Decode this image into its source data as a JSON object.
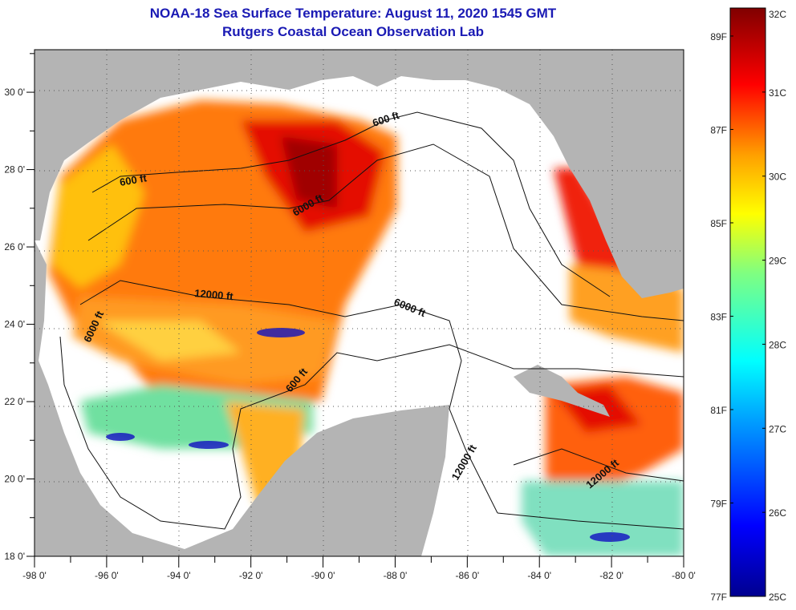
{
  "title": "NOAA-18 Sea Surface Temperature:  August 11, 2020 1545 GMT",
  "subtitle": "Rutgers Coastal Ocean Observation Lab",
  "map": {
    "lon_range": [
      -98,
      -80
    ],
    "lat_range": [
      18,
      31.1
    ],
    "lon_ticks": [
      "-98 0'",
      "-96 0'",
      "-94 0'",
      "-92 0'",
      "-90 0'",
      "-88 0'",
      "-86 0'",
      "-84 0'",
      "-82 0'",
      "-80 0'"
    ],
    "lat_ticks": [
      "18 0'",
      "20 0'",
      "22 0'",
      "24 0'",
      "26 0'",
      "28 0'",
      "30 0'"
    ],
    "contour_labels": [
      "600 ft",
      "600 ft",
      "6000 ft",
      "12000 ft",
      "6000 ft",
      "6000 ft",
      "600 ft",
      "12000 ft",
      "12000 ft"
    ],
    "colors": {
      "land": "#b4b4b4",
      "ocean_nodata": "#ffffff"
    }
  },
  "colorbar": {
    "celsius_labels": [
      "32C",
      "31C",
      "30C",
      "29C",
      "28C",
      "27C",
      "26C",
      "25C"
    ],
    "fahrenheit_labels": [
      "89F",
      "87F",
      "85F",
      "83F",
      "81F",
      "79F",
      "77F"
    ],
    "range_c": [
      25,
      32
    ]
  }
}
